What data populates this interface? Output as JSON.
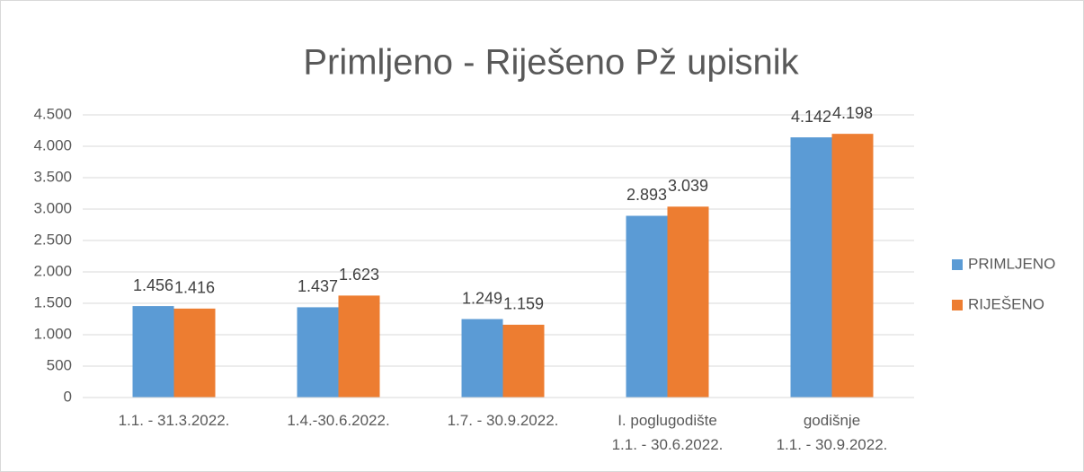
{
  "chart_data": {
    "type": "bar",
    "title": "Primljeno - Riješeno Pž upisnik",
    "categories": [
      "1.1. - 31.3.2022.",
      "1.4.-30.6.2022.",
      "1.7. - 30.9.2022.",
      "I. poglugodište\n1.1. - 30.6.2022.",
      "godišnje\n1.1. - 30.9.2022."
    ],
    "series": [
      {
        "name": "PRIMLJENO",
        "color": "#5b9bd5",
        "values": [
          1456,
          1437,
          1249,
          2893,
          4142
        ],
        "value_labels": [
          "1.456",
          "1.437",
          "1.249",
          "2.893",
          "4.142"
        ]
      },
      {
        "name": "RIJEŠENO",
        "color": "#ed7d31",
        "values": [
          1416,
          1623,
          1159,
          3039,
          4198
        ],
        "value_labels": [
          "1.416",
          "1.623",
          "1.159",
          "3.039",
          "4.198"
        ]
      }
    ],
    "ylim": [
      0,
      4500
    ],
    "yticks": [
      0,
      500,
      {
        "value": 1000,
        "label": "1.000"
      },
      {
        "value": 1500,
        "label": "1.500"
      },
      {
        "value": 2000,
        "label": "2.000"
      },
      {
        "value": 2500,
        "label": "2.500"
      },
      {
        "value": 3000,
        "label": "3.000"
      },
      {
        "value": 3500,
        "label": "3.500"
      },
      {
        "value": 4000,
        "label": "4.000"
      },
      {
        "value": 4500,
        "label": "4.500"
      }
    ],
    "grid": true,
    "legend": "right"
  }
}
